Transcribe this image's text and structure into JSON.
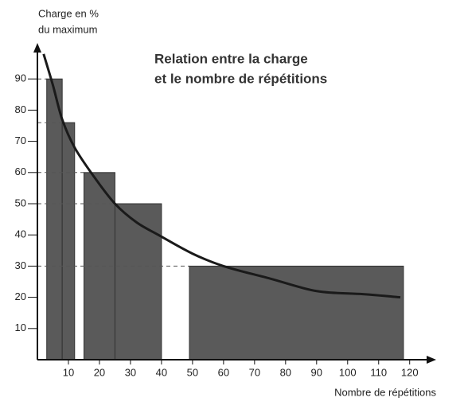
{
  "chart_data": {
    "type": "bar-curve",
    "title": [
      "Relation entre la charge",
      "et le nombre de répétitions"
    ],
    "y_label": [
      "Charge en %",
      "du maximum"
    ],
    "x_label": "Nombre de répétitions",
    "bars": {
      "color": "#5a5a5a",
      "x_start": [
        3,
        8,
        15,
        25,
        49
      ],
      "x_end": [
        8,
        12,
        25,
        40,
        118
      ],
      "values": [
        90,
        76,
        60,
        50,
        30
      ]
    },
    "curve": {
      "color": "#1a1a1a",
      "x": [
        2,
        5,
        8,
        12,
        18,
        25,
        32,
        39,
        50,
        60,
        75,
        90,
        105,
        117
      ],
      "values": [
        98,
        88,
        77,
        68,
        59,
        50,
        44,
        40,
        34,
        30,
        26,
        22,
        21,
        20
      ]
    },
    "xlim": [
      0,
      127
    ],
    "ylim": [
      0,
      100
    ],
    "xticks": [
      10,
      20,
      30,
      40,
      50,
      60,
      70,
      80,
      90,
      100,
      110,
      120
    ],
    "yticks": [
      10,
      20,
      30,
      40,
      50,
      60,
      70,
      80,
      90
    ]
  }
}
